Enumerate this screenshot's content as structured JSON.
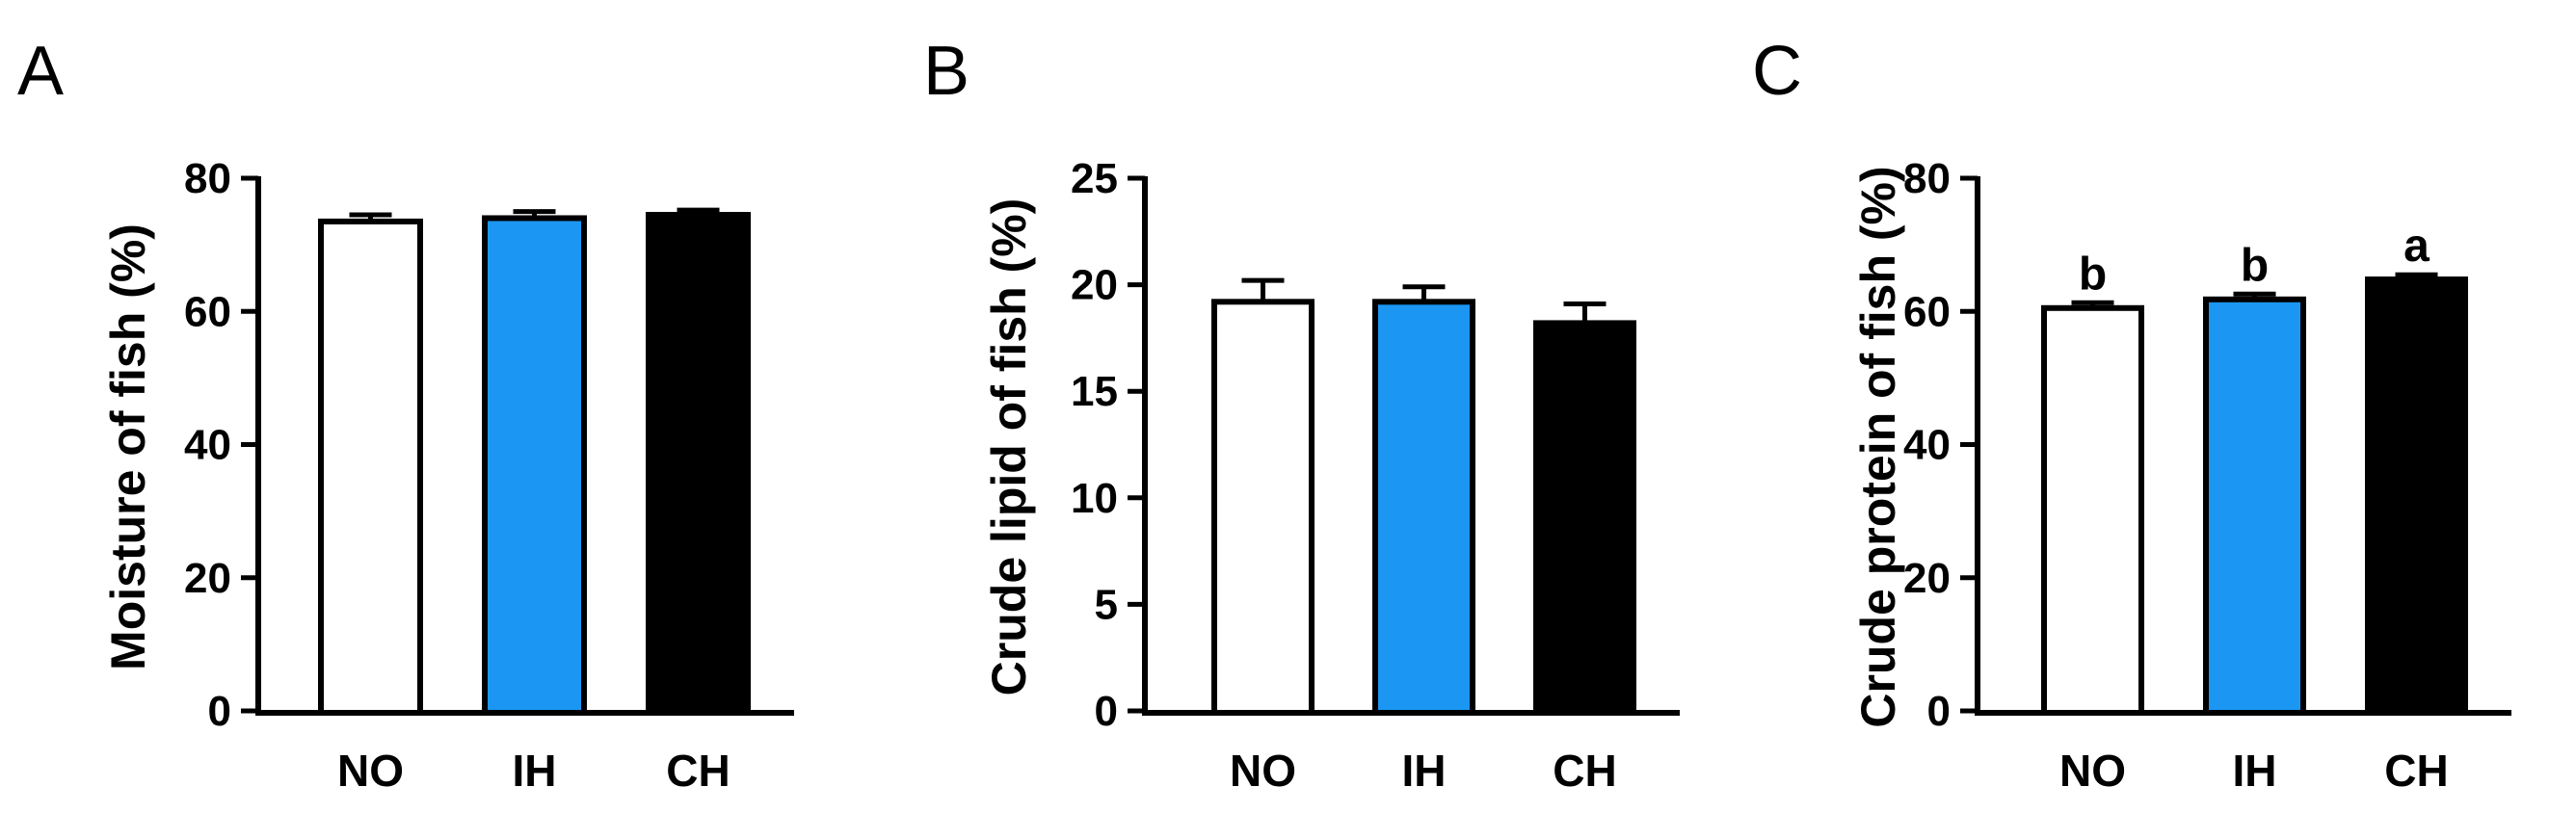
{
  "chart_data": [
    {
      "panel": "A",
      "type": "bar",
      "categories": [
        "NO",
        "IH",
        "CH"
      ],
      "values": [
        73.5,
        74.0,
        74.5
      ],
      "errors": [
        1.0,
        1.0,
        0.7
      ],
      "ylabel": "Moisture of fish (%)",
      "ylim": [
        0,
        80
      ],
      "yticks": [
        "0",
        "20",
        "40",
        "60",
        "80"
      ],
      "significance": [],
      "bar_colors": [
        "#ffffff",
        "#1b97f3",
        "#000000"
      ]
    },
    {
      "panel": "B",
      "type": "bar",
      "categories": [
        "NO",
        "IH",
        "CH"
      ],
      "values": [
        19.2,
        19.2,
        18.2
      ],
      "errors": [
        1.0,
        0.7,
        0.9
      ],
      "ylabel": "Crude lipid of fish (%)",
      "ylim": [
        0,
        25
      ],
      "yticks": [
        "0",
        "5",
        "10",
        "15",
        "20",
        "25"
      ],
      "significance": [],
      "bar_colors": [
        "#ffffff",
        "#1b97f3",
        "#000000"
      ]
    },
    {
      "panel": "C",
      "type": "bar",
      "categories": [
        "NO",
        "IH",
        "CH"
      ],
      "values": [
        60.5,
        61.8,
        64.8
      ],
      "errors": [
        0.8,
        0.8,
        0.7
      ],
      "ylabel": "Crude protein of fish (%)",
      "ylim": [
        0,
        80
      ],
      "yticks": [
        "0",
        "20",
        "40",
        "60",
        "80"
      ],
      "significance": [
        "b",
        "b",
        "a"
      ],
      "bar_colors": [
        "#ffffff",
        "#1b97f3",
        "#000000"
      ]
    }
  ]
}
